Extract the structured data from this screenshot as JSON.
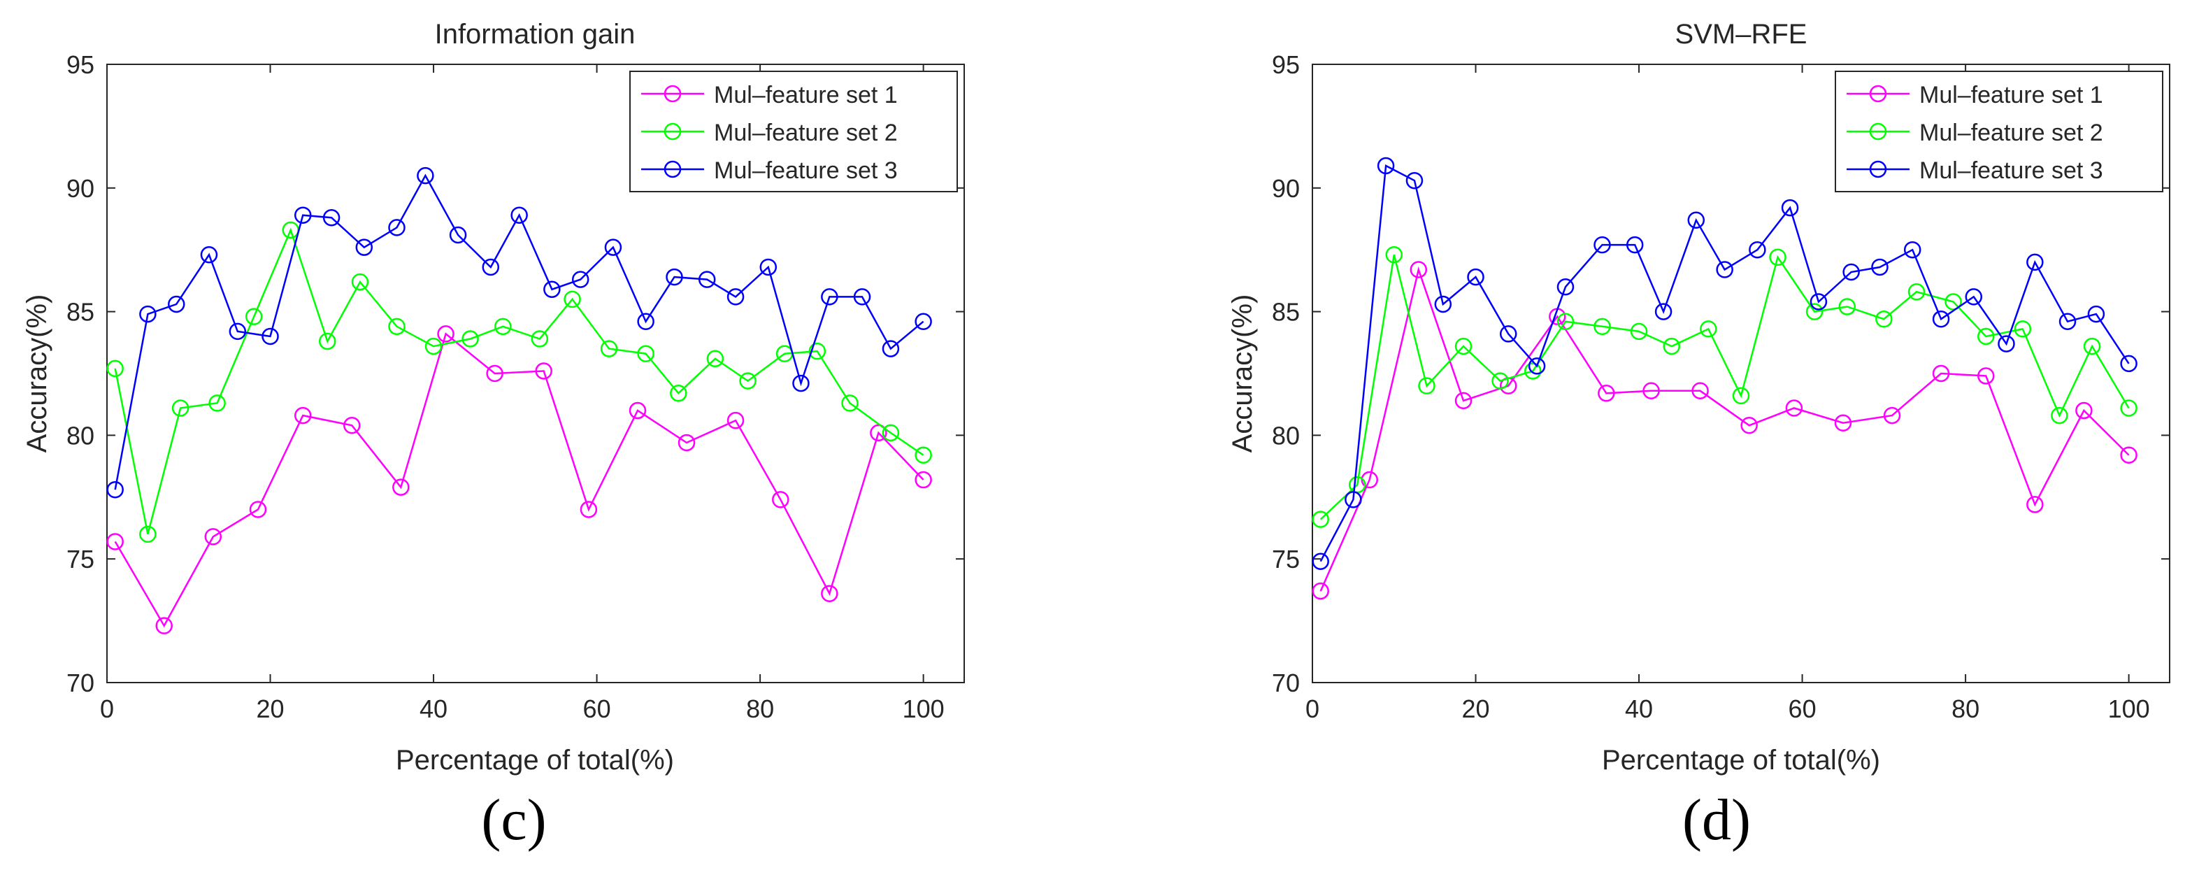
{
  "figure": {
    "panel_labels": [
      "(c)",
      "(d)"
    ]
  },
  "series_styles": [
    {
      "name": "Mul–feature set 1",
      "color": "#ff00ff"
    },
    {
      "name": "Mul–feature set 2",
      "color": "#00ff00"
    },
    {
      "name": "Mul–feature set 3",
      "color": "#0000ff"
    }
  ],
  "chart_data": [
    {
      "type": "line",
      "title": "Information gain",
      "xlabel": "Percentage of total(%)",
      "ylabel": "Accuracy(%)",
      "xlim": [
        0,
        105
      ],
      "ylim": [
        70,
        95
      ],
      "xticks": [
        0,
        20,
        40,
        60,
        80,
        100
      ],
      "yticks": [
        70,
        75,
        80,
        85,
        90,
        95
      ],
      "legend": "top-right",
      "series": [
        {
          "name": "Mul–feature set 1",
          "x": [
            1,
            7,
            13,
            18.5,
            24,
            30,
            36,
            41.5,
            47.5,
            53.5,
            59,
            65,
            71,
            77,
            82.5,
            88.5,
            94.5,
            100
          ],
          "y": [
            75.7,
            72.3,
            75.9,
            77.0,
            80.8,
            80.4,
            77.9,
            84.1,
            82.5,
            82.6,
            77.0,
            81.0,
            79.7,
            80.6,
            77.4,
            73.6,
            80.1,
            78.2
          ]
        },
        {
          "name": "Mul–feature set 2",
          "x": [
            1,
            5,
            9,
            13.5,
            18,
            22.5,
            27,
            31,
            35.5,
            40,
            44.5,
            48.5,
            53,
            57,
            61.5,
            66,
            70,
            74.5,
            78.5,
            83,
            87,
            91,
            96,
            100
          ],
          "y": [
            82.7,
            76.0,
            81.1,
            81.3,
            84.8,
            88.3,
            83.8,
            86.2,
            84.4,
            83.6,
            83.9,
            84.4,
            83.9,
            85.5,
            83.5,
            83.3,
            81.7,
            83.1,
            82.2,
            83.3,
            83.4,
            81.3,
            80.1,
            79.2
          ]
        },
        {
          "name": "Mul–feature set 3",
          "x": [
            1,
            5,
            8.5,
            12.5,
            16,
            20,
            24,
            27.5,
            31.5,
            35.5,
            39,
            43,
            47,
            50.5,
            54.5,
            58,
            62,
            66,
            69.5,
            73.5,
            77,
            81,
            85,
            88.5,
            92.5,
            96,
            100
          ],
          "y": [
            77.8,
            84.9,
            85.3,
            87.3,
            84.2,
            84.0,
            88.9,
            88.8,
            87.6,
            88.4,
            90.5,
            88.1,
            86.8,
            88.9,
            85.9,
            86.3,
            87.6,
            84.6,
            86.4,
            86.3,
            85.6,
            86.8,
            82.1,
            85.6,
            85.6,
            83.5,
            84.6
          ]
        }
      ]
    },
    {
      "type": "line",
      "title": "SVM–RFE",
      "xlabel": "Percentage of total(%)",
      "ylabel": "Accuracy(%)",
      "xlim": [
        0,
        105
      ],
      "ylim": [
        70,
        95
      ],
      "xticks": [
        0,
        20,
        40,
        60,
        80,
        100
      ],
      "yticks": [
        70,
        75,
        80,
        85,
        90,
        95
      ],
      "legend": "top-right",
      "series": [
        {
          "name": "Mul–feature set 1",
          "x": [
            1,
            7,
            13,
            18.5,
            24,
            30,
            36,
            41.5,
            47.5,
            53.5,
            59,
            65,
            71,
            77,
            82.5,
            88.5,
            94.5,
            100
          ],
          "y": [
            73.7,
            78.2,
            86.7,
            81.4,
            82.0,
            84.8,
            81.7,
            81.8,
            81.8,
            80.4,
            81.1,
            80.5,
            80.8,
            82.5,
            82.4,
            77.2,
            81.0,
            79.2
          ]
        },
        {
          "name": "Mul–feature set 2",
          "x": [
            1,
            5.5,
            10,
            14,
            18.5,
            23,
            27,
            31,
            35.5,
            40,
            44,
            48.5,
            52.5,
            57,
            61.5,
            65.5,
            70,
            74,
            78.5,
            82.5,
            87,
            91.5,
            95.5,
            100
          ],
          "y": [
            76.6,
            78.0,
            87.3,
            82.0,
            83.6,
            82.2,
            82.6,
            84.6,
            84.4,
            84.2,
            83.6,
            84.3,
            81.6,
            87.2,
            85.0,
            85.2,
            84.7,
            85.8,
            85.4,
            84.0,
            84.3,
            80.8,
            83.6,
            81.1
          ]
        },
        {
          "name": "Mul–feature set 3",
          "x": [
            1,
            5,
            9,
            12.5,
            16,
            20,
            24,
            27.5,
            31,
            35.5,
            39.5,
            43,
            47,
            50.5,
            54.5,
            58.5,
            62,
            66,
            69.5,
            73.5,
            77,
            81,
            85,
            88.5,
            92.5,
            96,
            100
          ],
          "y": [
            74.9,
            77.4,
            90.9,
            90.3,
            85.3,
            86.4,
            84.1,
            82.8,
            86.0,
            87.7,
            87.7,
            85.0,
            88.7,
            86.7,
            87.5,
            89.2,
            85.4,
            86.6,
            86.8,
            87.5,
            84.7,
            85.6,
            83.7,
            87.0,
            84.6,
            84.9,
            82.9
          ]
        }
      ]
    }
  ]
}
